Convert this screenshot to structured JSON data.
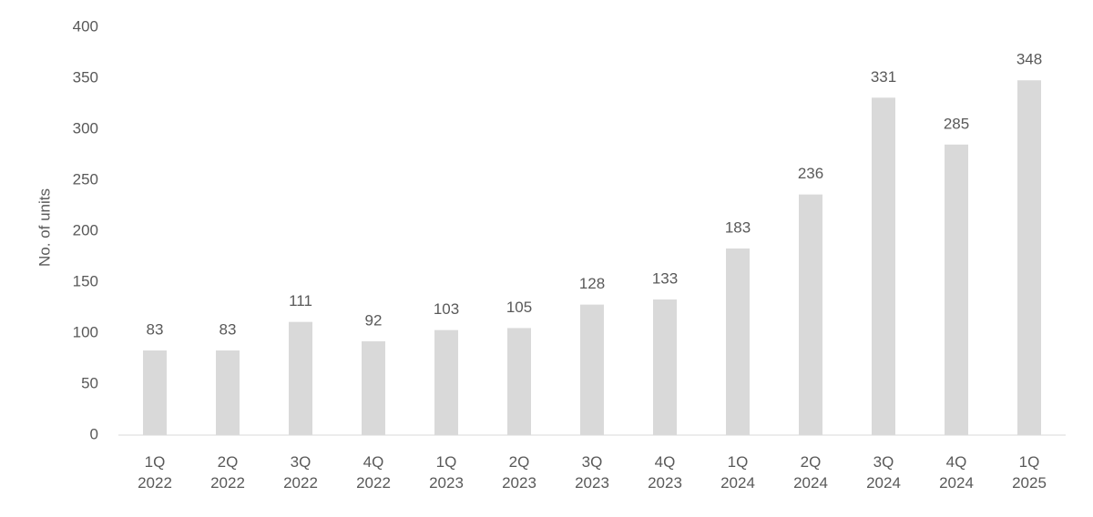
{
  "chart_data": {
    "type": "bar",
    "y_label": "No. of units",
    "categories": [
      "1Q 2022",
      "2Q 2022",
      "3Q 2022",
      "4Q 2022",
      "1Q 2023",
      "2Q 2023",
      "3Q 2023",
      "4Q 2023",
      "1Q 2024",
      "2Q 2024",
      "3Q 2024",
      "4Q 2024",
      "1Q 2025"
    ],
    "values": [
      83,
      83,
      111,
      92,
      103,
      105,
      128,
      133,
      183,
      236,
      331,
      285,
      348
    ],
    "color": "#d9d9d9",
    "ylim": [
      0,
      400
    ],
    "yticks": [
      0,
      50,
      100,
      150,
      200,
      250,
      300,
      350,
      400
    ],
    "grid": false
  }
}
